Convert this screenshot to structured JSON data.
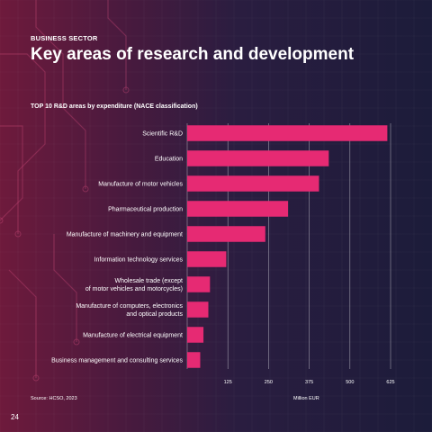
{
  "header": {
    "eyebrow": "BUSINESS SECTOR",
    "title": "Key areas of research and development"
  },
  "chart_title": "TOP 10 R&D areas by expenditure (NACE classification)",
  "footer": {
    "source": "Source: HCSO, 2023",
    "unit": "Million EUR",
    "page_number": "24"
  },
  "colors": {
    "bar": "#e62a73",
    "background_left": "#6e1a3c",
    "background_right": "#1c1c3a",
    "text": "#ffffff"
  },
  "chart_data": {
    "type": "bar",
    "orientation": "horizontal",
    "categories": [
      [
        "Scientific R&D"
      ],
      [
        "Education"
      ],
      [
        "Manufacture of motor vehicles"
      ],
      [
        "Pharmaceutical production"
      ],
      [
        "Manufacture of machinery and equipment"
      ],
      [
        "Information technology services"
      ],
      [
        "Wholesale trade (except",
        "of motor vehicles and motorcycles)"
      ],
      [
        "Manufacture of computers, electronics",
        "and optical products"
      ],
      [
        "Manufacture of electrical equipment"
      ],
      [
        "Business management and consulting services"
      ]
    ],
    "values": [
      615,
      435,
      405,
      310,
      240,
      120,
      70,
      65,
      50,
      40
    ],
    "xlim": [
      0,
      625
    ],
    "xticks": [
      125,
      250,
      375,
      500,
      625
    ],
    "grid": true,
    "xlabel": "",
    "ylabel": ""
  }
}
